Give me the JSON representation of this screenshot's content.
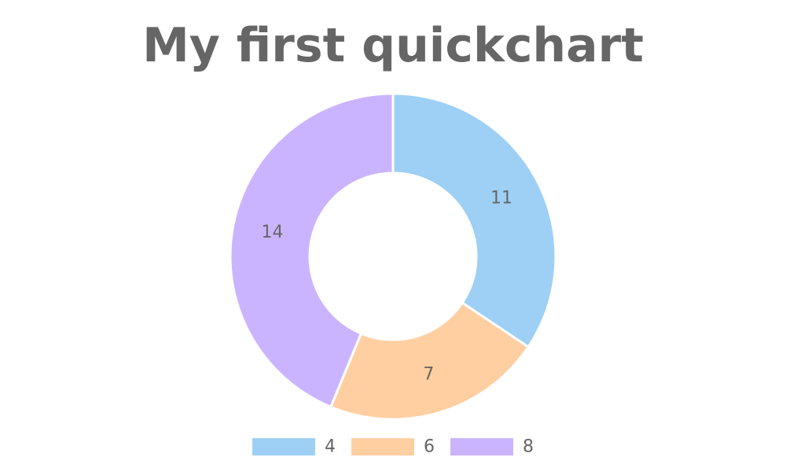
{
  "chart_data": {
    "type": "pie",
    "title": "My first quickchart",
    "legend_position": "bottom",
    "categories": [
      "4",
      "6",
      "8"
    ],
    "values": [
      11,
      7,
      14
    ],
    "colors": [
      "#9ed0f5",
      "#ffcfa2",
      "#cbb4ff"
    ],
    "text_color": "#666666"
  }
}
